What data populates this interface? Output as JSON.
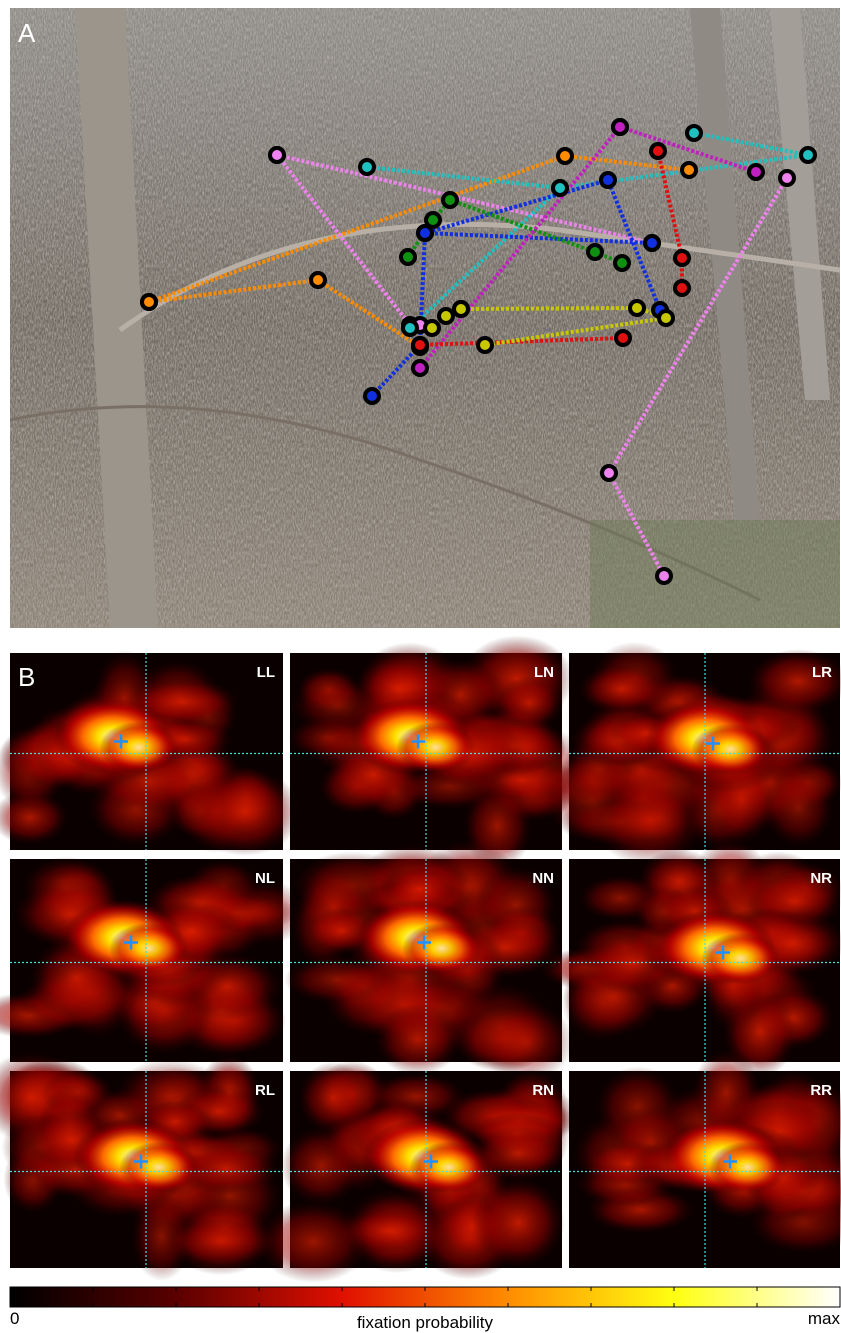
{
  "panel_a": {
    "label": "A"
  },
  "panel_b": {
    "label": "B",
    "panels": [
      "LL",
      "LN",
      "LR",
      "NL",
      "NN",
      "NR",
      "RL",
      "RN",
      "RR"
    ]
  },
  "colorbar": {
    "min_label": "0",
    "title": "fixation probability",
    "max_label": "max"
  }
}
